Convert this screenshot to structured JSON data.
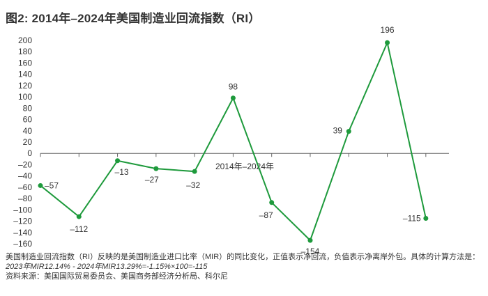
{
  "title": "图2: 2014年–2024年美国制造业回流指数（RI）",
  "notes": {
    "line1": "美国制造业回流指数（RI）反映的是美国制造业进口比率（MIR）的同比变化，正值表示净回流，负值表示净离岸外包。具体的计算方法是：",
    "line2": "2023年MIR12.14% - 2024年MIR13.29%=-1.15%×100=-115",
    "source": "资料来源：美国国际贸易委员会、美国商务部经济分析局、科尔尼"
  },
  "chart_data": {
    "type": "line",
    "title": "图2: 2014年–2024年美国制造业回流指数（RI）",
    "xlabel": "2014年–2024年",
    "ylabel": "",
    "ylim": [
      -160,
      200
    ],
    "yticks": [
      200,
      180,
      160,
      140,
      120,
      100,
      80,
      60,
      40,
      20,
      0,
      -20,
      -40,
      -60,
      -80,
      -100,
      -120,
      -140,
      -160
    ],
    "ytick_labels": [
      "200",
      "180",
      "160",
      "140",
      "120",
      "100",
      "80",
      "60",
      "40",
      "20",
      "0",
      "–20",
      "–40",
      "–60",
      "–80",
      "–100",
      "–120",
      "–140",
      "–160"
    ],
    "x": [
      1,
      2,
      3,
      4,
      5,
      6,
      7,
      8,
      9,
      10,
      11
    ],
    "values": [
      -57,
      -112,
      -13,
      -27,
      -32,
      98,
      -87,
      -154,
      39,
      196,
      -115
    ],
    "value_labels": [
      "–57",
      "–112",
      "–13",
      "–27",
      "–32",
      "98",
      "–87",
      "–154",
      "39",
      "196",
      "–115"
    ],
    "line_color": "#1e9a3c",
    "axis_color": "#666666",
    "grid": false
  }
}
